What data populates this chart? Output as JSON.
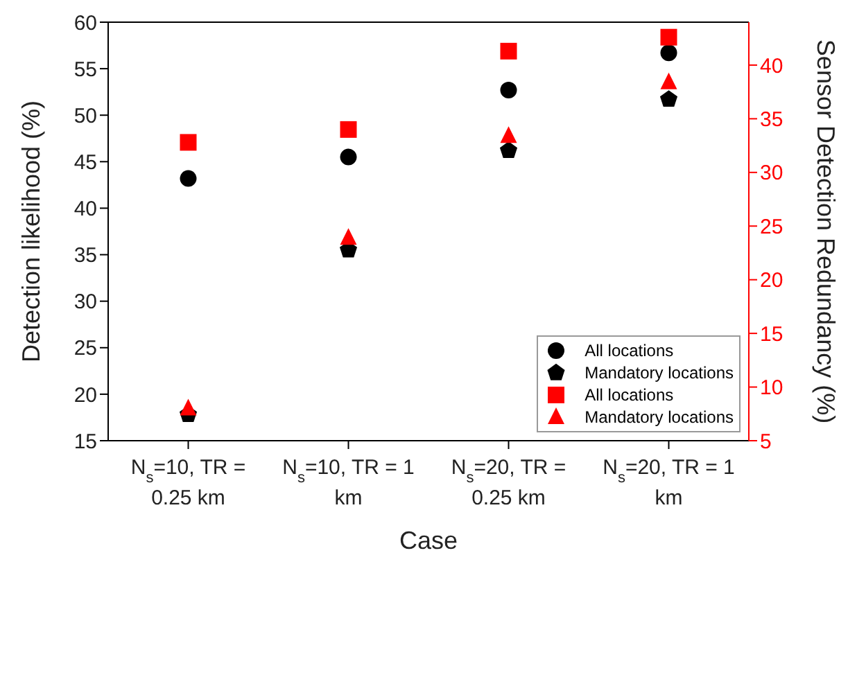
{
  "chart_data": {
    "type": "scatter",
    "xlabel": "Case",
    "ylabel": "Detection likelihood (%)",
    "y2label": "Sensor Detection Redundancy (%)",
    "categories": [
      "N$_{s}$=10, TR = 0.25 km",
      "N$_{s}$=10, TR = 1 km",
      "N$_{s}$=20, TR = 0.25 km",
      "N$_{s}$=20, TR = 1 km"
    ],
    "ylim": [
      15,
      60
    ],
    "yticks": [
      15,
      20,
      25,
      30,
      35,
      40,
      45,
      50,
      55,
      60
    ],
    "y2lim": [
      5,
      44
    ],
    "y2ticks": [
      5,
      10,
      15,
      20,
      25,
      30,
      35,
      40
    ],
    "legend": "bottom right",
    "series": [
      {
        "name": "All locations",
        "color": "#000000",
        "marker": "circle",
        "values": [
          43.2,
          45.5,
          52.7,
          56.7
        ]
      },
      {
        "name": "Mandatory locations",
        "color": "#000000",
        "values": [
          17.8,
          35.5,
          46.2,
          51.7
        ]
      },
      {
        "name": "All locations",
        "color": "#ff0000",
        "marker": "square",
        "axis": "y2",
        "values": [
          32.8,
          34.0,
          41.3,
          42.6
        ]
      },
      {
        "name": "Mandatory locations",
        "color": "#ff0000",
        "marker": "triangle",
        "axis": "y2",
        "values": [
          8.0,
          23.9,
          33.4,
          38.4
        ]
      }
    ]
  }
}
